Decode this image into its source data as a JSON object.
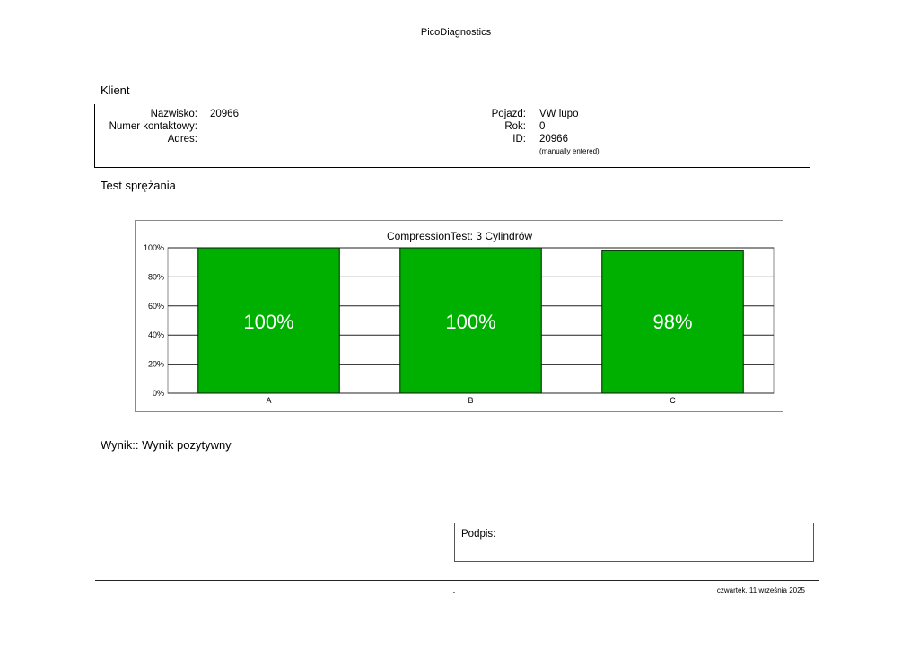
{
  "header": {
    "title": "PicoDiagnostics"
  },
  "client": {
    "section_title": "Klient",
    "left": [
      {
        "label": "Nazwisko:",
        "value": "20966"
      },
      {
        "label": "Numer kontaktowy:",
        "value": ""
      },
      {
        "label": "Adres:",
        "value": ""
      }
    ],
    "right": [
      {
        "label": "Pojazd:",
        "value": "VW lupo"
      },
      {
        "label": "Rok:",
        "value": "0"
      },
      {
        "label": "ID:",
        "value": "20966"
      }
    ],
    "id_note": "(manually entered)"
  },
  "test": {
    "section_title": "Test sprężania"
  },
  "chart_data": {
    "type": "bar",
    "title": "CompressionTest: 3 Cylindrów",
    "categories": [
      "A",
      "B",
      "C"
    ],
    "values": [
      100,
      100,
      98
    ],
    "data_labels": [
      "100%",
      "100%",
      "98%"
    ],
    "y_ticks": [
      "0%",
      "20%",
      "40%",
      "60%",
      "80%",
      "100%"
    ],
    "ylim": [
      0,
      100
    ],
    "bar_color": "#00b000",
    "grid": true,
    "legend": "none"
  },
  "result": {
    "text": "Wynik:: Wynik pozytywny"
  },
  "signature": {
    "label": "Podpis:"
  },
  "footer": {
    "left": "-",
    "date": "czwartek, 11 września 2025"
  }
}
